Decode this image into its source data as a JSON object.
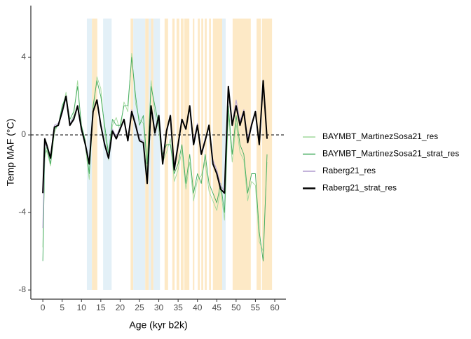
{
  "chart_data": {
    "type": "line",
    "xlabel": "Age (kyr b2k)",
    "ylabel": "Temp MAF (°C)",
    "xlim": [
      -3.1,
      62.9
    ],
    "ylim": [
      -8.47,
      6.67
    ],
    "xticks": [
      0,
      5,
      10,
      15,
      20,
      25,
      30,
      35,
      40,
      45,
      50,
      55,
      60
    ],
    "yticks": [
      -8,
      -4,
      0,
      4
    ],
    "hline": 0,
    "band_ylim": [
      -8,
      6
    ],
    "bands": [
      {
        "x": [
          11.4,
          12.7
        ],
        "color": "#e3f0f7"
      },
      {
        "x": [
          12.7,
          14.1
        ],
        "color": "#fde9c6"
      },
      {
        "x": [
          15.6,
          17.8
        ],
        "color": "#e3f0f7"
      },
      {
        "x": [
          22.7,
          23.4
        ],
        "color": "#fde9c6"
      },
      {
        "x": [
          23.4,
          26.5
        ],
        "color": "#e3f0f7"
      },
      {
        "x": [
          26.5,
          27.4
        ],
        "color": "#fde9c6"
      },
      {
        "x": [
          27.4,
          28.0
        ],
        "color": "#e3f0f7"
      },
      {
        "x": [
          28.0,
          28.6
        ],
        "color": "#fde9c6"
      },
      {
        "x": [
          28.6,
          30.3
        ],
        "color": "#e3f0f7"
      },
      {
        "x": [
          31.5,
          32.4
        ],
        "color": "#fde9c6"
      },
      {
        "x": [
          33.5,
          34.1
        ],
        "color": "#fde9c6"
      },
      {
        "x": [
          34.6,
          35.3
        ],
        "color": "#fde9c6"
      },
      {
        "x": [
          35.7,
          36.4
        ],
        "color": "#fde9c6"
      },
      {
        "x": [
          36.6,
          37.9
        ],
        "color": "#fde9c6"
      },
      {
        "x": [
          38.8,
          39.2
        ],
        "color": "#fde9c6"
      },
      {
        "x": [
          40.1,
          40.6
        ],
        "color": "#fde9c6"
      },
      {
        "x": [
          41.0,
          41.5
        ],
        "color": "#fde9c6"
      },
      {
        "x": [
          41.9,
          42.4
        ],
        "color": "#fde9c6"
      },
      {
        "x": [
          43.0,
          43.5
        ],
        "color": "#fde9c6"
      },
      {
        "x": [
          44.0,
          46.4
        ],
        "color": "#fde9c6"
      },
      {
        "x": [
          46.4,
          47.3
        ],
        "color": "#e3f0f7"
      },
      {
        "x": [
          49.1,
          53.8
        ],
        "color": "#fde9c6"
      },
      {
        "x": [
          55.3,
          56.4
        ],
        "color": "#fde9c6"
      },
      {
        "x": [
          56.7,
          59.3
        ],
        "color": "#fde9c6"
      }
    ],
    "x": [
      0,
      0.5,
      1,
      2,
      3,
      4,
      5,
      6,
      7,
      8,
      9,
      10,
      11,
      12,
      13,
      14,
      15,
      16,
      17,
      18,
      19,
      20,
      21,
      22,
      23,
      24,
      25,
      26,
      27,
      28,
      29,
      30,
      31,
      32,
      33,
      34,
      35,
      36,
      37,
      38,
      39,
      40,
      41,
      42,
      43,
      44,
      45,
      46,
      47,
      48,
      49,
      50,
      51,
      52,
      53,
      54,
      55,
      56,
      57,
      58
    ],
    "series": [
      {
        "name": "BAYMBT_MartinezSosa21_res",
        "color": "#a1d99b",
        "width": 0.9,
        "values": [
          -5.8,
          -1.2,
          -0.8,
          -1.6,
          0.1,
          0.6,
          1.3,
          2.2,
          0.6,
          1.0,
          2.8,
          0.3,
          -0.6,
          -2.3,
          1.2,
          3.0,
          2.4,
          0.2,
          -1.3,
          0.5,
          0.9,
          0.2,
          1.7,
          1.2,
          4.2,
          1.6,
          0.8,
          0.6,
          -1.9,
          2.8,
          1.1,
          0.2,
          -1.4,
          -0.9,
          -0.2,
          -2.4,
          -1.8,
          -0.8,
          -2.8,
          -1.4,
          -3.4,
          -2.3,
          -2.1,
          -1.4,
          -2.9,
          -3.4,
          -3.9,
          -2.8,
          -4.4,
          1.1,
          -1.4,
          0.6,
          -0.9,
          -1.3,
          -3.4,
          -2.4,
          -2.6,
          -5.5,
          -6.0,
          -1.4
        ]
      },
      {
        "name": "BAYMBT_MartinezSosa21_strat_res",
        "color": "#41ab5d",
        "width": 0.9,
        "values": [
          -6.5,
          -1.0,
          -0.6,
          -1.5,
          0.3,
          0.5,
          1.5,
          2.0,
          0.8,
          1.2,
          2.5,
          0.5,
          -0.3,
          -2.0,
          1.5,
          2.8,
          2.0,
          0.5,
          -1.0,
          0.8,
          0.5,
          0.5,
          1.5,
          1.5,
          4.0,
          2.0,
          0.5,
          1.0,
          -1.5,
          2.5,
          1.5,
          0.5,
          -1.0,
          -0.5,
          -0.5,
          -2.0,
          -1.5,
          -0.5,
          -2.5,
          -1.0,
          -3.0,
          -2.0,
          -2.5,
          -1.0,
          -2.5,
          -3.0,
          -3.5,
          -2.5,
          -4.0,
          1.5,
          -1.0,
          1.0,
          -0.5,
          -1.0,
          -3.0,
          -2.0,
          -2.0,
          -5.0,
          -6.5,
          -1.0
        ]
      },
      {
        "name": "Raberg21_res",
        "color": "#bcaad6",
        "width": 1.2,
        "values": [
          -4.8,
          -0.4,
          -0.6,
          -1.1,
          0.5,
          0.6,
          1.1,
          1.9,
          0.6,
          0.9,
          1.4,
          0.2,
          -0.4,
          -1.4,
          1.3,
          1.7,
          0.6,
          -0.4,
          -1.1,
          0.3,
          -0.1,
          0.4,
          0.7,
          -0.2,
          1.3,
          0.6,
          -0.2,
          -0.3,
          -2.3,
          1.4,
          0.2,
          0.9,
          -1.3,
          0.3,
          0.9,
          -1.6,
          -0.4,
          0.7,
          0.4,
          1.4,
          -0.3,
          0.6,
          -0.9,
          -0.2,
          0.4,
          -1.3,
          -1.8,
          -2.6,
          -2.9,
          2.3,
          0.6,
          1.8,
          0.7,
          1.3,
          -0.2,
          0.6,
          1.1,
          -0.3,
          2.5,
          -0.1
        ]
      },
      {
        "name": "Raberg21_strat_res",
        "color": "#000000",
        "width": 2,
        "values": [
          -3.0,
          -0.2,
          -0.5,
          -1.2,
          0.4,
          0.5,
          1.2,
          2.0,
          0.5,
          0.8,
          1.5,
          0.3,
          -0.5,
          -1.5,
          1.2,
          1.8,
          0.5,
          -0.5,
          -1.2,
          0.2,
          -0.2,
          0.3,
          0.8,
          -0.3,
          1.2,
          0.5,
          -0.3,
          -0.4,
          -2.5,
          1.5,
          0.1,
          1.0,
          -1.5,
          0.2,
          1.0,
          -1.8,
          -0.5,
          0.8,
          0.3,
          1.5,
          -0.5,
          0.5,
          -1.0,
          -0.3,
          0.5,
          -1.5,
          -2.0,
          -2.8,
          -3.0,
          2.5,
          0.5,
          1.5,
          0.5,
          1.2,
          -0.4,
          0.5,
          1.2,
          -0.5,
          2.8,
          -0.2
        ]
      }
    ]
  }
}
